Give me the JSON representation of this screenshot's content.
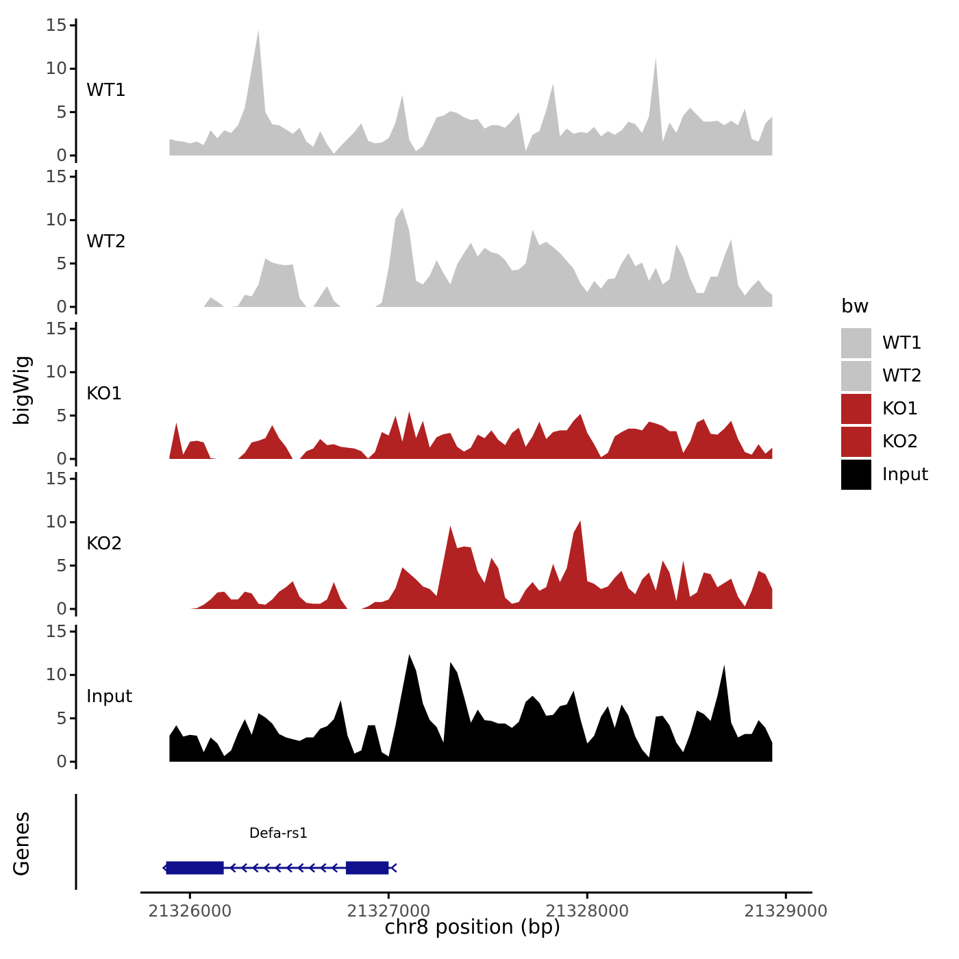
{
  "y_axis_label": "bigWig",
  "genes_axis_label": "Genes",
  "x_axis": {
    "title": "chr8 position (bp)",
    "ticks": [
      21326000,
      21327000,
      21328000,
      21329000
    ]
  },
  "panel_y_ticks": [
    0,
    5,
    10,
    15
  ],
  "legend": {
    "title": "bw",
    "entries": [
      {
        "label": "WT1",
        "color": "#c4c4c4"
      },
      {
        "label": "WT2",
        "color": "#c4c4c4"
      },
      {
        "label": "KO1",
        "color": "#b22222"
      },
      {
        "label": "KO2",
        "color": "#b22222"
      },
      {
        "label": "Input",
        "color": "#000000"
      }
    ]
  },
  "chart_data": {
    "type": "area",
    "title": "",
    "xlabel": "chr8 position (bp)",
    "ylabel": "bigWig",
    "ylim": [
      0,
      15
    ],
    "grid": false,
    "legend_position": "right",
    "x_start": 21325897,
    "x_step": 34.483,
    "tracks": [
      {
        "name": "WT1",
        "color": "#c4c4c4",
        "values": [
          1.9,
          1.7,
          1.6,
          1.4,
          1.6,
          1.2,
          2.9,
          2.0,
          2.9,
          2.6,
          3.5,
          5.5,
          10.0,
          14.5,
          5.0,
          3.6,
          3.5,
          3.0,
          2.5,
          3.2,
          1.6,
          1.0,
          2.8,
          1.3,
          0.2,
          1.1,
          1.9,
          2.7,
          3.7,
          1.7,
          1.4,
          1.5,
          2.0,
          3.8,
          7.0,
          1.8,
          0.5,
          1.1,
          2.7,
          4.4,
          4.6,
          5.1,
          4.9,
          4.4,
          4.1,
          4.2,
          3.1,
          3.5,
          3.5,
          3.2,
          4.0,
          5.0,
          0.5,
          2.4,
          2.8,
          5.2,
          8.3,
          2.2,
          3.1,
          2.5,
          2.7,
          2.6,
          3.3,
          2.2,
          2.8,
          2.4,
          2.9,
          3.9,
          3.6,
          2.6,
          4.5,
          11.3,
          1.6,
          3.8,
          2.6,
          4.6,
          5.5,
          4.7,
          3.9,
          3.9,
          4.0,
          3.5,
          4.0,
          3.5,
          5.4,
          1.9,
          1.6,
          3.7,
          4.5
        ]
      },
      {
        "name": "WT2",
        "color": "#c4c4c4",
        "values": [
          0,
          0,
          0,
          0,
          0,
          0,
          1.1,
          0.6,
          0,
          0,
          0.1,
          1.4,
          1.2,
          2.6,
          5.6,
          5.1,
          4.9,
          4.8,
          4.9,
          1.0,
          0,
          0,
          1.2,
          2.4,
          0.7,
          0,
          0,
          0,
          0,
          0,
          0,
          0.5,
          4.5,
          10.2,
          11.4,
          8.8,
          3.0,
          2.6,
          3.6,
          5.4,
          3.9,
          2.6,
          4.9,
          6.2,
          7.4,
          5.8,
          6.8,
          6.3,
          6.1,
          5.4,
          4.2,
          4.3,
          5.0,
          8.9,
          7.1,
          7.5,
          6.9,
          6.2,
          5.3,
          4.4,
          2.7,
          1.7,
          3.0,
          2.1,
          3.2,
          3.3,
          5.0,
          6.2,
          4.7,
          5.1,
          3.0,
          4.5,
          2.6,
          3.2,
          7.2,
          5.7,
          3.3,
          1.6,
          1.6,
          3.5,
          3.5,
          5.8,
          7.8,
          2.5,
          1.3,
          2.3,
          3.1,
          2.0,
          1.4
        ]
      },
      {
        "name": "KO1",
        "color": "#b22222",
        "values": [
          0.3,
          4.2,
          0.5,
          2.0,
          2.1,
          1.9,
          0.1,
          0,
          0,
          0,
          0,
          0.7,
          1.9,
          2.1,
          2.4,
          3.9,
          2.4,
          1.4,
          0,
          0,
          0.9,
          1.2,
          2.3,
          1.6,
          1.7,
          1.4,
          1.3,
          1.2,
          0.9,
          0.05,
          0.8,
          3.1,
          2.7,
          5.0,
          2.0,
          5.5,
          2.4,
          4.4,
          1.3,
          2.5,
          2.85,
          3.0,
          1.4,
          0.85,
          1.3,
          2.8,
          2.4,
          3.3,
          2.2,
          1.6,
          3.0,
          3.6,
          1.4,
          2.6,
          4.3,
          2.3,
          3.1,
          3.3,
          3.3,
          4.4,
          5.2,
          3.0,
          1.7,
          0.2,
          0.7,
          2.6,
          3.1,
          3.5,
          3.5,
          3.3,
          4.3,
          4.1,
          3.8,
          3.2,
          3.2,
          0.7,
          2.0,
          4.2,
          4.6,
          2.9,
          2.8,
          3.5,
          4.4,
          2.3,
          0.8,
          0.5,
          1.7,
          0.6,
          1.3
        ]
      },
      {
        "name": "KO2",
        "color": "#b22222",
        "values": [
          0,
          0,
          0,
          0,
          0.1,
          0.5,
          1.1,
          1.9,
          2.0,
          1.1,
          1.1,
          2.0,
          1.8,
          0.6,
          0.5,
          1.1,
          2.0,
          2.5,
          3.2,
          1.4,
          0.7,
          0.6,
          0.6,
          1.1,
          3.1,
          1.1,
          0,
          0,
          0,
          0.3,
          0.8,
          0.8,
          1.1,
          2.4,
          4.8,
          4.1,
          3.4,
          2.6,
          2.3,
          1.5,
          5.5,
          9.6,
          7.0,
          7.2,
          7.1,
          4.3,
          3.0,
          5.9,
          4.7,
          1.3,
          0.6,
          0.8,
          2.2,
          3.1,
          2.1,
          2.5,
          5.2,
          3.1,
          4.7,
          8.8,
          10.2,
          3.2,
          2.9,
          2.3,
          2.6,
          3.6,
          4.4,
          2.4,
          1.7,
          3.4,
          4.2,
          2.1,
          5.6,
          4.2,
          0.9,
          5.6,
          1.4,
          1.9,
          4.2,
          4.0,
          2.5,
          3.0,
          3.5,
          1.4,
          0.3,
          2.1,
          4.4,
          4.0,
          2.3
        ]
      },
      {
        "name": "Input",
        "color": "#000000",
        "values": [
          3.0,
          4.2,
          2.9,
          3.1,
          3.0,
          1.1,
          2.8,
          2.1,
          0.65,
          1.3,
          3.3,
          4.9,
          3.1,
          5.6,
          5.1,
          4.4,
          3.2,
          2.8,
          2.6,
          2.4,
          2.8,
          2.8,
          3.8,
          4.1,
          4.9,
          7.1,
          3.0,
          0.95,
          1.3,
          4.2,
          4.2,
          1.1,
          0.6,
          4.2,
          8.3,
          12.4,
          10.5,
          6.7,
          4.8,
          4.0,
          2.2,
          11.5,
          10.3,
          7.5,
          4.5,
          6.0,
          4.8,
          4.7,
          4.4,
          4.4,
          3.9,
          4.6,
          6.9,
          7.6,
          6.8,
          5.3,
          5.4,
          6.4,
          6.6,
          8.2,
          4.9,
          2.1,
          3.0,
          5.2,
          6.4,
          3.9,
          6.6,
          5.3,
          2.9,
          1.4,
          0.5,
          5.2,
          5.3,
          4.2,
          2.2,
          1.1,
          3.2,
          5.9,
          5.5,
          4.7,
          7.6,
          11.2,
          4.5,
          2.8,
          3.2,
          3.2,
          4.8,
          3.9,
          2.2
        ]
      }
    ],
    "gene_track": {
      "label": "Genes",
      "genes": [
        {
          "name": "Defa-rs1",
          "strand": "-",
          "start": 21325880,
          "end": 21327012,
          "exons": [
            [
              21325880,
              21326170
            ],
            [
              21326785,
              21327000
            ]
          ],
          "color": "#10108c"
        }
      ]
    }
  }
}
